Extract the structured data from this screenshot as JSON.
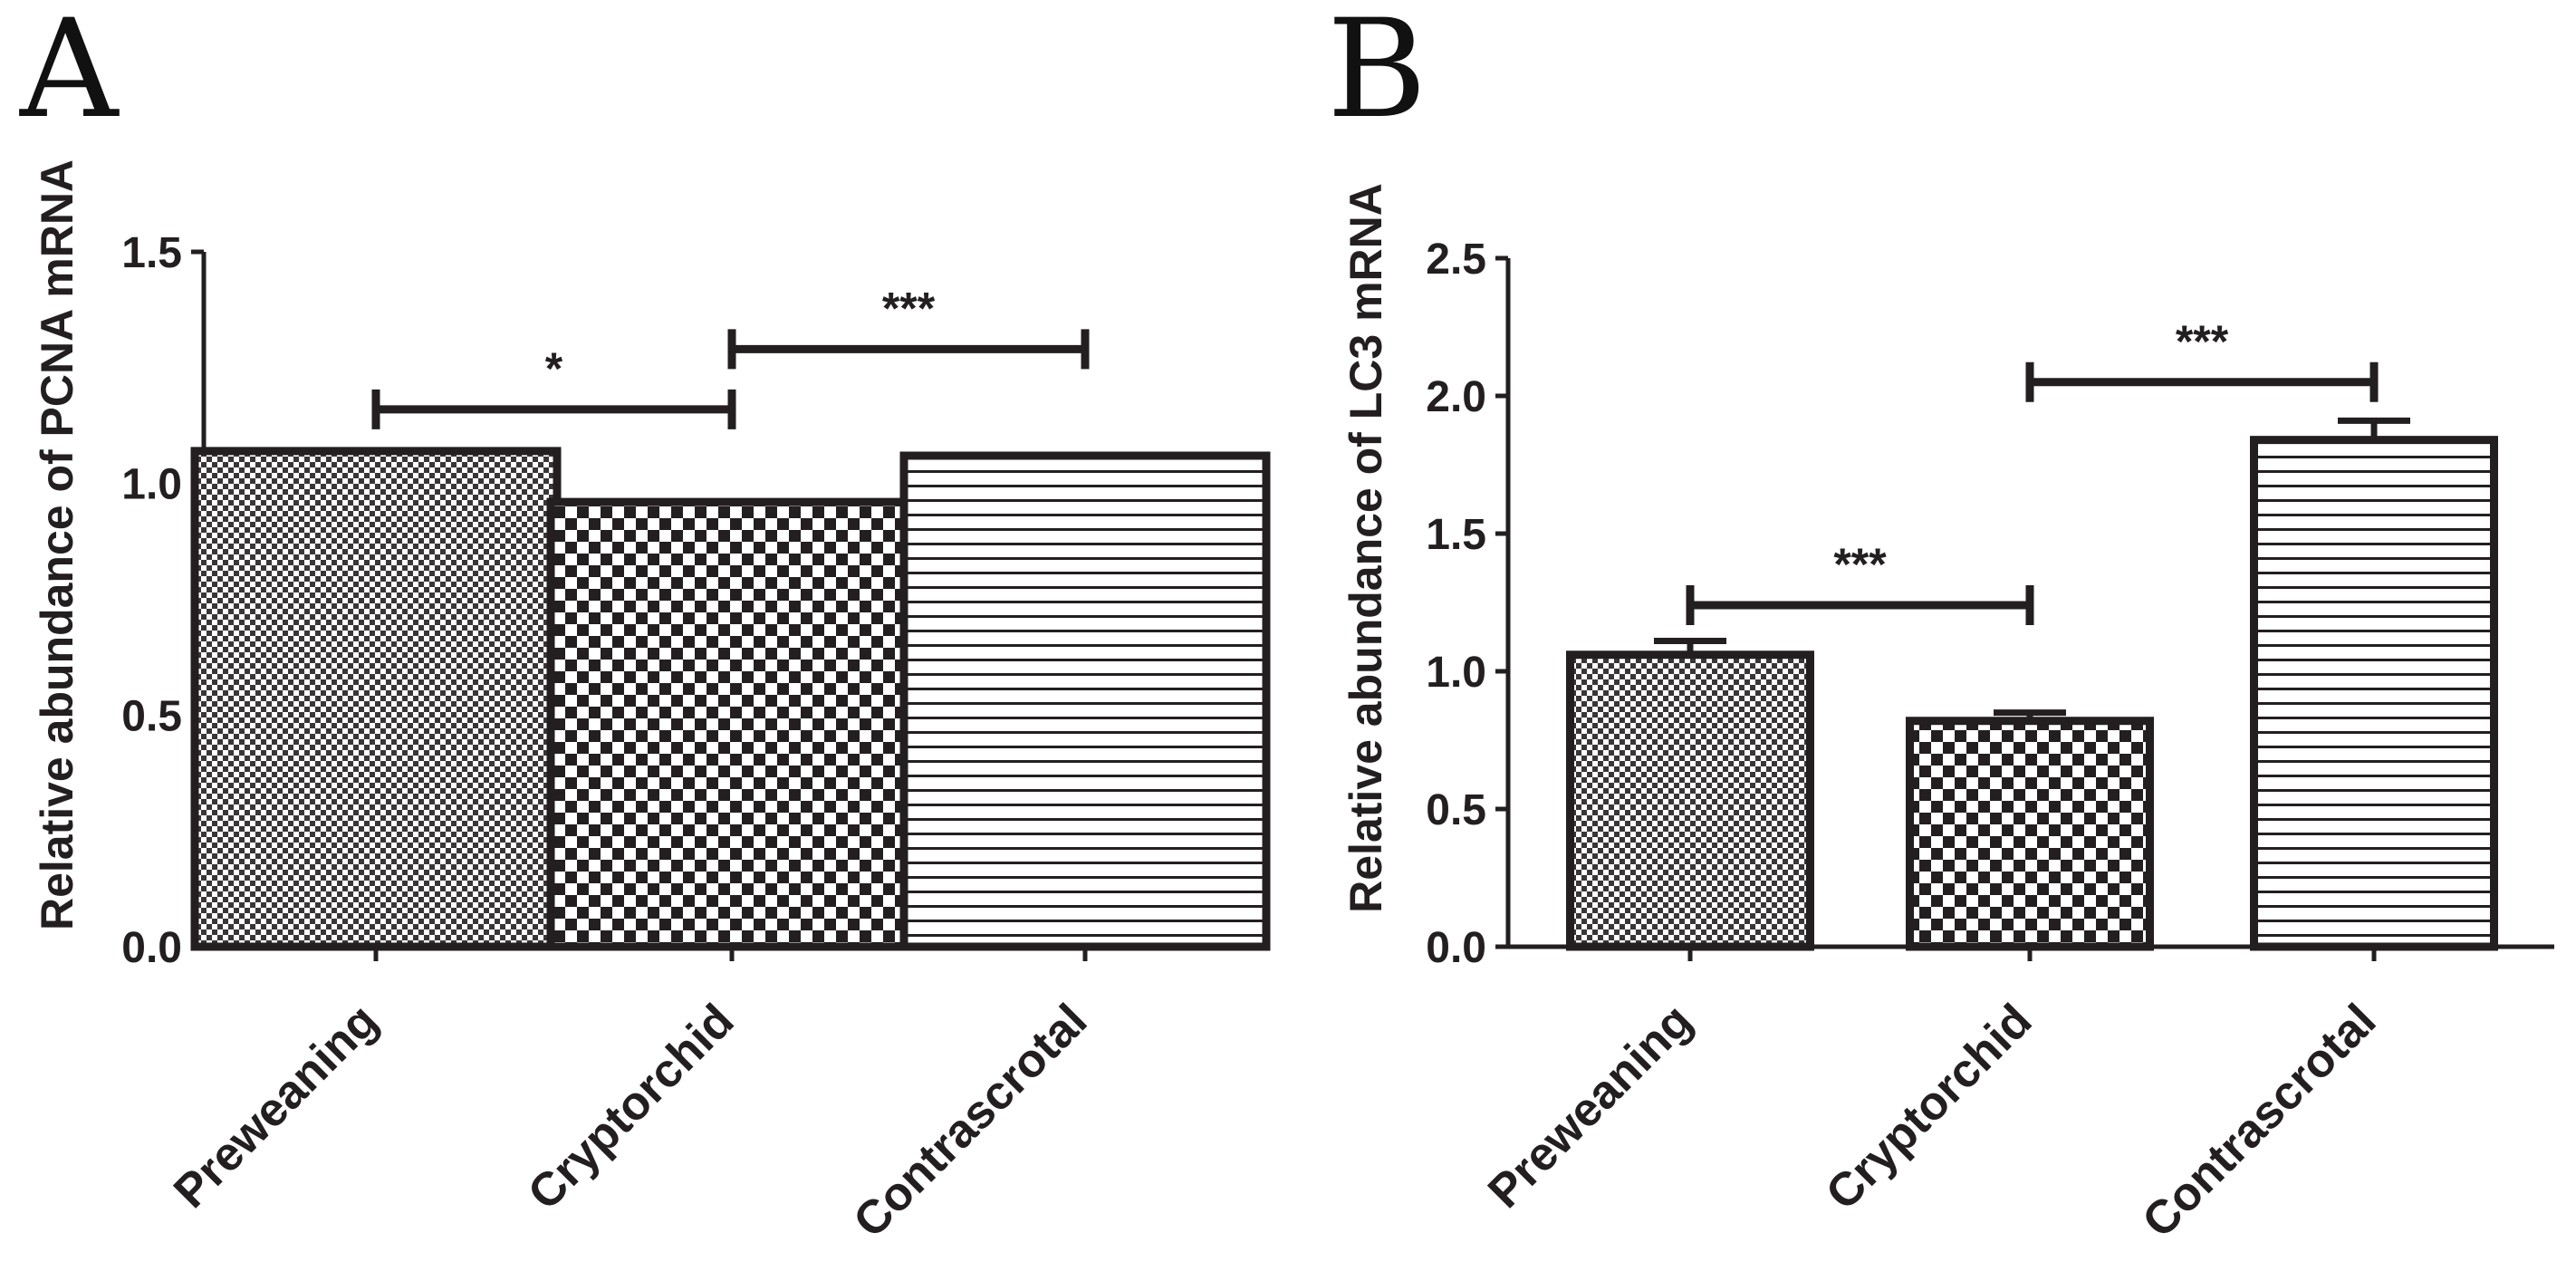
{
  "chart_data": [
    {
      "type": "bar",
      "panel": "A",
      "ylabel": "Relative abundance of PCNA mRNA",
      "ylim": [
        0,
        1.5
      ],
      "yticks": [
        "0.0",
        "0.5",
        "1.0",
        "1.5"
      ],
      "categories": [
        "Preweaning",
        "Cryptorchid",
        "Contrascrotal"
      ],
      "values": [
        1.07,
        0.96,
        1.06
      ],
      "errors": [
        0.005,
        0.005,
        0.005
      ],
      "patterns": [
        "fine-checker",
        "checker",
        "horizontal-lines"
      ],
      "significance": [
        {
          "from": 0,
          "to": 1,
          "y": 1.16,
          "label": "*"
        },
        {
          "from": 1,
          "to": 2,
          "y": 1.29,
          "label": "***"
        }
      ]
    },
    {
      "type": "bar",
      "panel": "B",
      "ylabel": "Relative abundance of LC3 mRNA",
      "ylim": [
        0,
        2.5
      ],
      "yticks": [
        "0.0",
        "0.5",
        "1.0",
        "1.5",
        "2.0",
        "2.5"
      ],
      "categories": [
        "Preweaning",
        "Cryptorchid",
        "Contrascrotal"
      ],
      "values": [
        1.06,
        0.82,
        1.84
      ],
      "errors": [
        0.05,
        0.03,
        0.07
      ],
      "patterns": [
        "fine-checker",
        "checker",
        "horizontal-lines"
      ],
      "significance": [
        {
          "from": 0,
          "to": 1,
          "y": 1.24,
          "label": "***"
        },
        {
          "from": 1,
          "to": 2,
          "y": 2.05,
          "label": "***"
        }
      ]
    }
  ]
}
